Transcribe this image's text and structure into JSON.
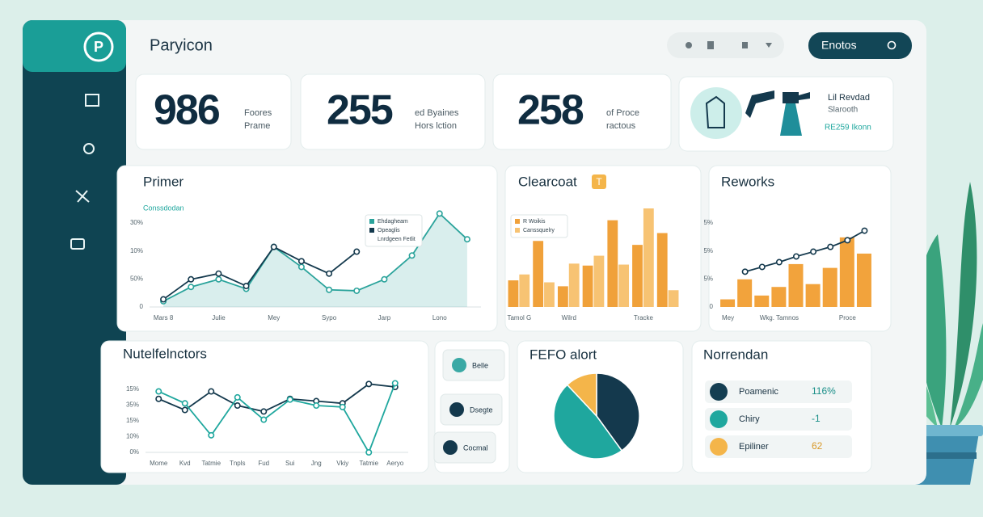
{
  "header": {
    "title": "Paryicon",
    "search": "Enotos"
  },
  "kpis": [
    {
      "value": 986,
      "line1": "Foores",
      "line2": "Prame"
    },
    {
      "value": 255,
      "line1": "ed Byaines",
      "line2": "Hors lction"
    },
    {
      "value": 258,
      "line1": "of Proce",
      "line2": "ractous"
    }
  ],
  "promo": {
    "title": "Lil Revdad",
    "subtitle": "Slarooth",
    "note": "RE259 Ikonn"
  },
  "chart_data": [
    {
      "type": "line",
      "title": "Primer",
      "subtitle": "Conssdodan",
      "annotation": "Lnrdgeen Fetlit",
      "categories": [
        "Mars 8",
        null,
        "Julie",
        null,
        "Mey",
        null,
        "Sypo",
        null,
        "Jarp",
        null,
        "Lono",
        null
      ],
      "y_labels": [
        "30%",
        "10%",
        "50%",
        "0"
      ],
      "ylim": [
        0,
        100
      ],
      "series": [
        {
          "name": "Ehdagheam",
          "color": "#2aa39b",
          "area": true,
          "values": [
            6,
            21,
            29,
            19,
            63,
            42,
            18,
            17,
            29,
            54,
            98,
            71
          ]
        },
        {
          "name": "Opeaglis",
          "color": "#14394d",
          "values": [
            8,
            29,
            35,
            22,
            63,
            48,
            35,
            58,
            null,
            null,
            null,
            null
          ]
        }
      ]
    },
    {
      "type": "bar",
      "title": "Clearcoat",
      "badge": "T",
      "categories": [
        "Tamol G",
        null,
        "Wilrd",
        null,
        null,
        "Tracke",
        null
      ],
      "ylim": [
        0,
        100
      ],
      "series": [
        {
          "name": "R Woikis",
          "color": "#f0a13a",
          "values": [
            27,
            67,
            21,
            42,
            88,
            63,
            75
          ]
        },
        {
          "name": "Canssquelry",
          "color": "#f7c373",
          "values": [
            33,
            25,
            44,
            52,
            43,
            100,
            17
          ]
        }
      ]
    },
    {
      "type": "bar",
      "title": "Reworks",
      "categories": [
        "Mey",
        null,
        null,
        "Wkg. Tamnos",
        null,
        null,
        null,
        "Proce",
        null
      ],
      "y_labels": [
        "5%",
        "5%",
        "5%",
        "0"
      ],
      "ylim": [
        0,
        100
      ],
      "series": [
        {
          "color": "#f2a33c",
          "values": [
            8,
            29,
            12,
            21,
            45,
            24,
            41,
            73,
            56
          ]
        },
        {
          "color": "#14394d",
          "style": "line",
          "values": [
            null,
            37,
            42,
            47,
            53,
            58,
            63,
            70,
            80
          ]
        }
      ]
    },
    {
      "type": "line",
      "title": "Nutelfelnctors",
      "categories": [
        "Mome",
        "Kvd",
        "Tatmie",
        "Tnpls",
        "Fud",
        "Sui",
        "Jng",
        "Vkiy",
        "Tatmie",
        "Aeryo"
      ],
      "y_labels": [
        "15%",
        "35%",
        "15%",
        "10%",
        "0%"
      ],
      "ylim": [
        0,
        100
      ],
      "series": [
        {
          "color": "#14394d",
          "values": [
            72,
            57,
            82,
            63,
            55,
            72,
            69,
            66,
            92,
            88
          ]
        },
        {
          "color": "#1fa79e",
          "values": [
            82,
            66,
            23,
            74,
            44,
            71,
            63,
            61,
            0,
            93
          ]
        }
      ]
    },
    {
      "type": "pie",
      "title": "FEFO alort",
      "values": [
        40,
        48,
        12
      ],
      "colors": [
        "#14394d",
        "#1fa79e",
        "#f4b54a"
      ]
    }
  ],
  "actions": [
    "Belle",
    "Dsegte",
    "Cocmal"
  ],
  "list": {
    "title": "Norrendan",
    "rows": [
      {
        "name": "Poamenic",
        "value": "116%",
        "color": "#143e52"
      },
      {
        "name": "Chiry",
        "value": "-1",
        "color": "#1fa79e"
      },
      {
        "name": "Epiliner",
        "value": "62",
        "color": "#f4b54a"
      }
    ]
  }
}
